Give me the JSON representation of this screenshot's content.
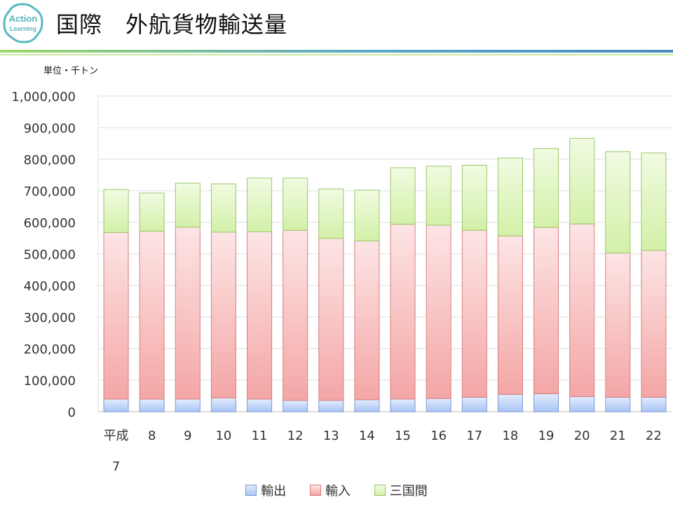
{
  "header": {
    "title": "国際　外航貨物輸送量",
    "logo_text_1": "Action",
    "logo_text_2": "Learning"
  },
  "unit_label": "単位・千トン",
  "colors": {
    "export": "#a9c4f5",
    "import": "#f4a6a6",
    "cross": "#d3f0a8",
    "rule": "#5aa9c8"
  },
  "chart_data": {
    "type": "bar",
    "stacked": true,
    "categories": [
      "平成7",
      "8",
      "9",
      "10",
      "11",
      "12",
      "13",
      "14",
      "15",
      "16",
      "17",
      "18",
      "19",
      "20",
      "21",
      "22"
    ],
    "category_lines": [
      [
        "平成",
        "7"
      ],
      [
        "8"
      ],
      [
        "9"
      ],
      [
        "10"
      ],
      [
        "11"
      ],
      [
        "12"
      ],
      [
        "13"
      ],
      [
        "14"
      ],
      [
        "15"
      ],
      [
        "16"
      ],
      [
        "17"
      ],
      [
        "18"
      ],
      [
        "19"
      ],
      [
        "20"
      ],
      [
        "21"
      ],
      [
        "22"
      ]
    ],
    "series": [
      {
        "name": "輸出",
        "values": [
          40000,
          40000,
          40000,
          44000,
          40000,
          36000,
          36000,
          38000,
          40000,
          42000,
          46000,
          55000,
          57000,
          48000,
          46000,
          46000
        ]
      },
      {
        "name": "輸入",
        "values": [
          528000,
          532000,
          545000,
          525000,
          530000,
          539000,
          513000,
          503000,
          554000,
          549000,
          529000,
          502000,
          527000,
          547000,
          457000,
          465000
        ]
      },
      {
        "name": "三国間",
        "values": [
          136000,
          121000,
          139000,
          153000,
          170000,
          165000,
          157000,
          161000,
          179000,
          187000,
          206000,
          247000,
          250000,
          271000,
          321000,
          309000
        ]
      }
    ],
    "ylim": [
      0,
      1000000
    ],
    "yticks": [
      0,
      100000,
      200000,
      300000,
      400000,
      500000,
      600000,
      700000,
      800000,
      900000,
      1000000
    ],
    "ytick_labels": [
      "0",
      "100,000",
      "200,000",
      "300,000",
      "400,000",
      "500,000",
      "600,000",
      "700,000",
      "800,000",
      "900,000",
      "1,000,000"
    ],
    "grid": true,
    "legend_position": "bottom"
  }
}
